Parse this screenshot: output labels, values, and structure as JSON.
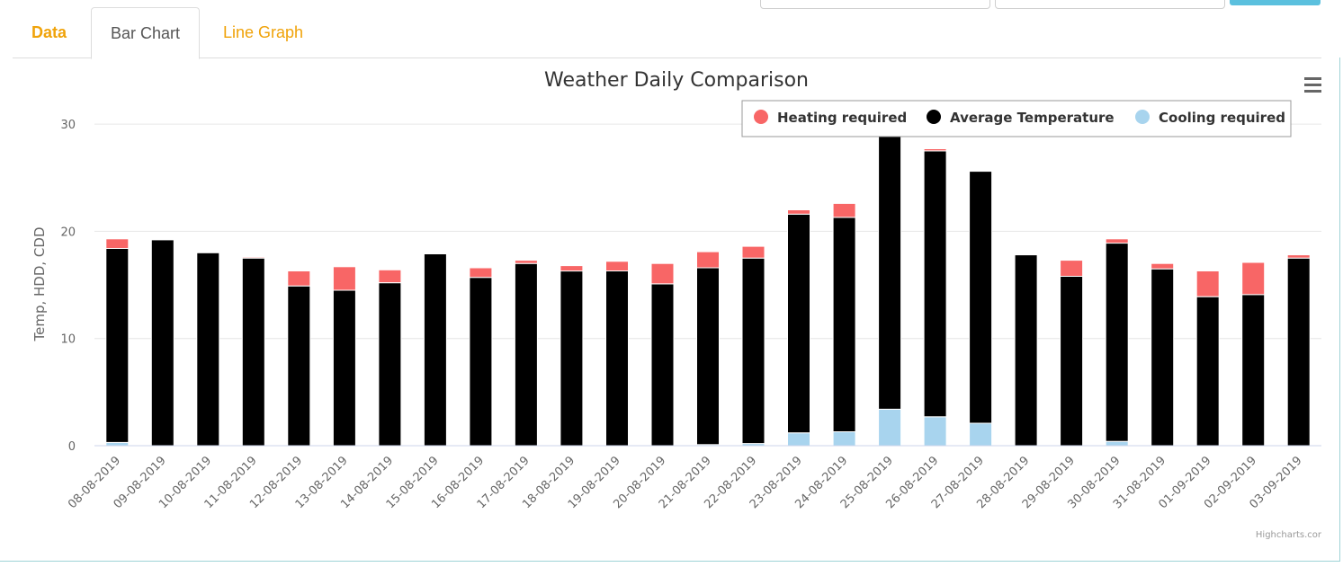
{
  "tabs": [
    {
      "label": "Data",
      "active": false
    },
    {
      "label": "Bar Chart",
      "active": true
    },
    {
      "label": "Line Graph",
      "active": false
    }
  ],
  "menu_icon": "hamburger-menu-icon",
  "credits": "Highcharts.cor",
  "colors": {
    "heating": "#f86666",
    "average": "#000000",
    "cooling": "#a8d4ee",
    "tab_accent": "#f0a30a"
  },
  "chart_data": {
    "type": "bar",
    "stacked": true,
    "title": "Weather Daily Comparison",
    "ylabel": "Temp, HDD, CDD",
    "ylim": [
      0,
      30
    ],
    "yticks": [
      0,
      10,
      20,
      30
    ],
    "grid": true,
    "legend_position": "top-right",
    "categories": [
      "08-08-2019",
      "09-08-2019",
      "10-08-2019",
      "11-08-2019",
      "12-08-2019",
      "13-08-2019",
      "14-08-2019",
      "15-08-2019",
      "16-08-2019",
      "17-08-2019",
      "18-08-2019",
      "19-08-2019",
      "20-08-2019",
      "21-08-2019",
      "22-08-2019",
      "23-08-2019",
      "24-08-2019",
      "25-08-2019",
      "26-08-2019",
      "27-08-2019",
      "28-08-2019",
      "29-08-2019",
      "30-08-2019",
      "31-08-2019",
      "01-09-2019",
      "02-09-2019",
      "03-09-2019"
    ],
    "series": [
      {
        "name": "Cooling required",
        "color": "#a8d4ee",
        "values": [
          0.3,
          0,
          0,
          0,
          0,
          0,
          0,
          0,
          0,
          0,
          0,
          0,
          0,
          0.1,
          0.2,
          1.2,
          1.3,
          3.4,
          2.7,
          2.1,
          0,
          0,
          0.4,
          0,
          0,
          0,
          0
        ]
      },
      {
        "name": "Average Temperature",
        "color": "#000000",
        "values": [
          18.1,
          19.2,
          18.0,
          17.5,
          14.9,
          14.5,
          15.2,
          17.9,
          15.7,
          17.0,
          16.3,
          16.3,
          15.1,
          16.5,
          17.3,
          20.4,
          20.0,
          26.6,
          24.8,
          23.5,
          17.8,
          15.8,
          18.5,
          16.5,
          13.9,
          14.1,
          17.5
        ]
      },
      {
        "name": "Heating required",
        "color": "#f86666",
        "values": [
          0.9,
          0,
          0,
          0.1,
          1.4,
          2.2,
          1.2,
          0,
          0.9,
          0.3,
          0.5,
          0.9,
          1.9,
          1.5,
          1.1,
          0.4,
          1.3,
          0,
          0.2,
          0,
          0,
          1.5,
          0.4,
          0.5,
          2.4,
          3.0,
          0.3
        ]
      }
    ],
    "legend": [
      "Heating required",
      "Average Temperature",
      "Cooling required"
    ]
  }
}
